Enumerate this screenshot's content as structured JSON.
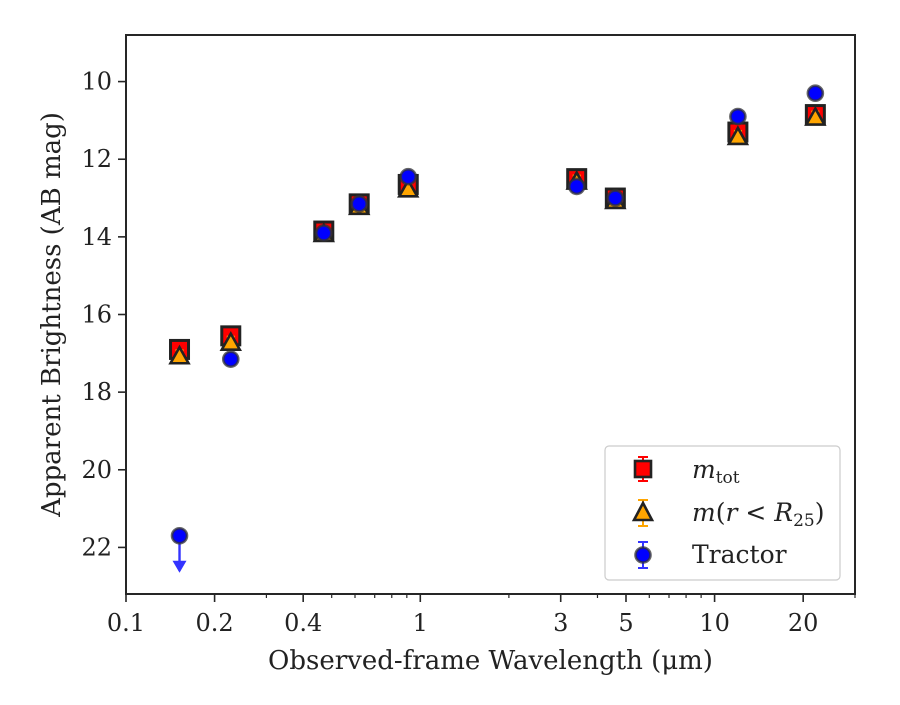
{
  "chart_data": {
    "type": "scatter",
    "title": "",
    "xlabel": "Observed-frame Wavelength (μm)",
    "ylabel": "Apparent Brightness (AB mag)",
    "xscale": "log",
    "xlim": [
      0.1,
      30
    ],
    "ylim": [
      23.2,
      8.8
    ],
    "y_inverted": true,
    "xticks": [
      {
        "value": 0.1,
        "label": "0.1"
      },
      {
        "value": 0.2,
        "label": "0.2"
      },
      {
        "value": 0.4,
        "label": "0.4"
      },
      {
        "value": 1,
        "label": "1"
      },
      {
        "value": 3,
        "label": "3"
      },
      {
        "value": 5,
        "label": "5"
      },
      {
        "value": 10,
        "label": "10"
      },
      {
        "value": 20,
        "label": "20"
      }
    ],
    "yticks": [
      {
        "value": 10,
        "label": "10"
      },
      {
        "value": 12,
        "label": "12"
      },
      {
        "value": 14,
        "label": "14"
      },
      {
        "value": 16,
        "label": "16"
      },
      {
        "value": 18,
        "label": "18"
      },
      {
        "value": 20,
        "label": "20"
      },
      {
        "value": 22,
        "label": "22"
      }
    ],
    "grid": false,
    "legend_position": "lower-right",
    "series": [
      {
        "name": "m_tot",
        "marker": "square",
        "color": "#ff0000",
        "edge_color": "#222222",
        "points": [
          {
            "x": 0.152,
            "y": 16.9
          },
          {
            "x": 0.227,
            "y": 16.55
          },
          {
            "x": 0.47,
            "y": 13.85
          },
          {
            "x": 0.62,
            "y": 13.15
          },
          {
            "x": 0.91,
            "y": 12.65
          },
          {
            "x": 3.4,
            "y": 12.5
          },
          {
            "x": 4.6,
            "y": 13.0
          },
          {
            "x": 12.0,
            "y": 11.3
          },
          {
            "x": 22.0,
            "y": 10.85
          }
        ]
      },
      {
        "name": "m(r < R25)",
        "marker": "triangle",
        "color": "#ffa500",
        "edge_color": "#222222",
        "points": [
          {
            "x": 0.152,
            "y": 17.05
          },
          {
            "x": 0.227,
            "y": 16.7
          },
          {
            "x": 0.47,
            "y": 13.9
          },
          {
            "x": 0.62,
            "y": 13.2
          },
          {
            "x": 0.91,
            "y": 12.75
          },
          {
            "x": 3.4,
            "y": 12.55
          },
          {
            "x": 4.6,
            "y": 13.05
          },
          {
            "x": 12.0,
            "y": 11.4
          },
          {
            "x": 22.0,
            "y": 10.9
          }
        ]
      },
      {
        "name": "Tractor",
        "marker": "circle",
        "color": "#0000ff",
        "edge_color": "#333333",
        "points": [
          {
            "x": 0.152,
            "y": 21.7,
            "upper_limit": true
          },
          {
            "x": 0.227,
            "y": 17.15
          },
          {
            "x": 0.47,
            "y": 13.9
          },
          {
            "x": 0.62,
            "y": 13.15
          },
          {
            "x": 0.91,
            "y": 12.45
          },
          {
            "x": 3.4,
            "y": 12.7
          },
          {
            "x": 4.6,
            "y": 13.0
          },
          {
            "x": 12.0,
            "y": 10.9
          },
          {
            "x": 22.0,
            "y": 10.3
          }
        ]
      }
    ]
  },
  "legend": {
    "mtot_main": "m",
    "mtot_sub": "tot",
    "mr_pre": "m",
    "mr_mid": "(",
    "mr_r": "r",
    "mr_lt": " < ",
    "mr_R": "R",
    "mr_sub": "25",
    "mr_post": ")",
    "tractor": "Tractor"
  }
}
